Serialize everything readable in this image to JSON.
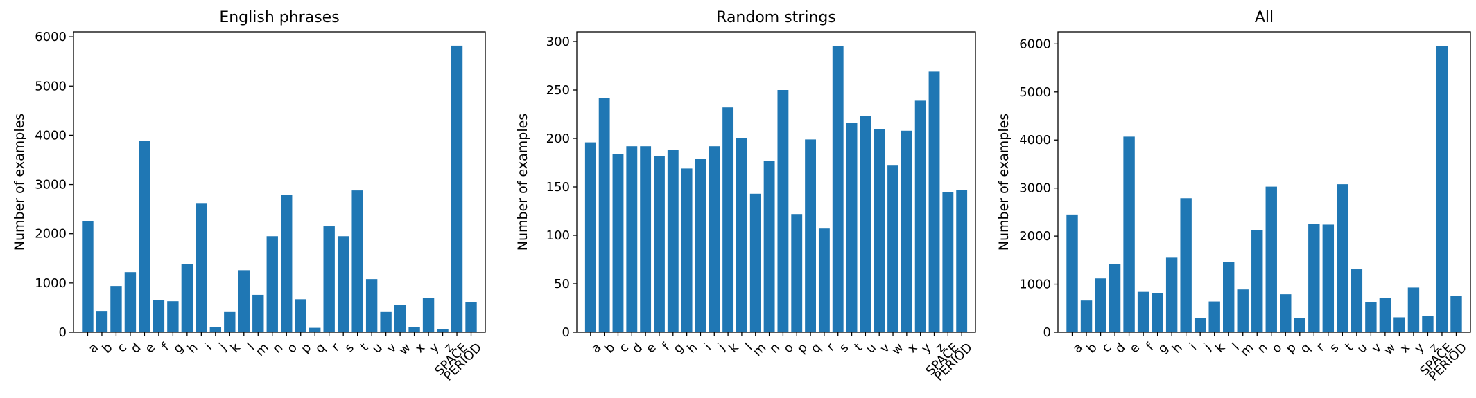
{
  "chart_data": [
    {
      "type": "bar",
      "title": "English phrases",
      "xlabel": "",
      "ylabel": "Number of examples",
      "ylim": [
        0,
        6100
      ],
      "yticks": [
        0,
        1000,
        2000,
        3000,
        4000,
        5000,
        6000
      ],
      "categories": [
        "a",
        "b",
        "c",
        "d",
        "e",
        "f",
        "g",
        "h",
        "i",
        "j",
        "k",
        "l",
        "m",
        "n",
        "o",
        "p",
        "q",
        "r",
        "s",
        "t",
        "u",
        "v",
        "w",
        "x",
        "y",
        "z",
        "SPACE",
        "PERIOD"
      ],
      "values": [
        2250,
        420,
        940,
        1220,
        3880,
        660,
        630,
        1390,
        2610,
        100,
        410,
        1260,
        760,
        1950,
        2790,
        670,
        90,
        2150,
        1950,
        2880,
        1080,
        410,
        550,
        110,
        700,
        70,
        5820,
        610
      ],
      "color": "#1f77b4"
    },
    {
      "type": "bar",
      "title": "Random strings",
      "xlabel": "",
      "ylabel": "Number of examples",
      "ylim": [
        0,
        310
      ],
      "yticks": [
        0,
        50,
        100,
        150,
        200,
        250,
        300
      ],
      "categories": [
        "a",
        "b",
        "c",
        "d",
        "e",
        "f",
        "g",
        "h",
        "i",
        "j",
        "k",
        "l",
        "m",
        "n",
        "o",
        "p",
        "q",
        "r",
        "s",
        "t",
        "u",
        "v",
        "w",
        "x",
        "y",
        "z",
        "SPACE",
        "PERIOD"
      ],
      "values": [
        196,
        242,
        184,
        192,
        192,
        182,
        188,
        169,
        179,
        192,
        232,
        200,
        143,
        177,
        250,
        122,
        199,
        107,
        295,
        216,
        223,
        210,
        172,
        208,
        239,
        269,
        145,
        147
      ],
      "color": "#1f77b4"
    },
    {
      "type": "bar",
      "title": "All",
      "xlabel": "",
      "ylabel": "Number of examples",
      "ylim": [
        0,
        6250
      ],
      "yticks": [
        0,
        1000,
        2000,
        3000,
        4000,
        5000,
        6000
      ],
      "categories": [
        "a",
        "b",
        "c",
        "d",
        "e",
        "f",
        "g",
        "h",
        "i",
        "j",
        "k",
        "l",
        "m",
        "n",
        "o",
        "p",
        "q",
        "r",
        "s",
        "t",
        "u",
        "v",
        "w",
        "x",
        "y",
        "z",
        "SPACE",
        "PERIOD"
      ],
      "values": [
        2450,
        660,
        1120,
        1420,
        4070,
        840,
        820,
        1550,
        2790,
        290,
        640,
        1460,
        890,
        2130,
        3030,
        790,
        290,
        2250,
        2240,
        3080,
        1310,
        620,
        720,
        310,
        930,
        340,
        5960,
        750
      ],
      "color": "#1f77b4"
    }
  ]
}
